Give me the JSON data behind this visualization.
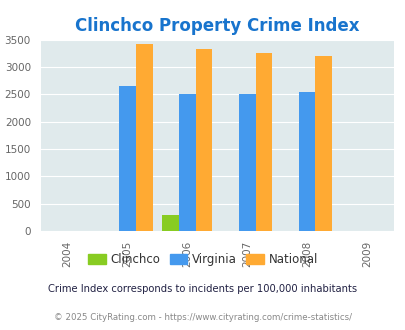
{
  "title": "Clinchco Property Crime Index",
  "title_color": "#1874CD",
  "years": [
    2005,
    2006,
    2007,
    2008
  ],
  "x_ticks": [
    2004,
    2005,
    2006,
    2007,
    2008,
    2009
  ],
  "clinchco": [
    0,
    300,
    0,
    0
  ],
  "virginia": [
    2650,
    2500,
    2500,
    2540
  ],
  "national": [
    3420,
    3330,
    3250,
    3200
  ],
  "clinchco_color": "#88CC22",
  "virginia_color": "#4499EE",
  "national_color": "#FFAA33",
  "ylim": [
    0,
    3500
  ],
  "yticks": [
    0,
    500,
    1000,
    1500,
    2000,
    2500,
    3000,
    3500
  ],
  "bg_color": "#E0EAEC",
  "bar_width": 0.28,
  "legend_labels": [
    "Clinchco",
    "Virginia",
    "National"
  ],
  "footnote1": "Crime Index corresponds to incidents per 100,000 inhabitants",
  "footnote2": "© 2025 CityRating.com - https://www.cityrating.com/crime-statistics/",
  "footnote1_color": "#222244",
  "footnote2_color": "#888888"
}
